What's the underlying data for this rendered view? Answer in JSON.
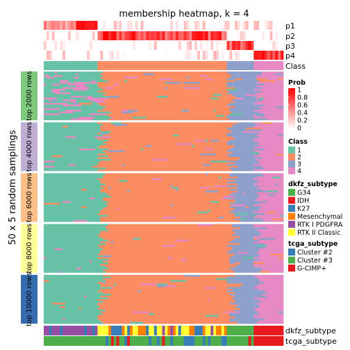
{
  "chart_data": {
    "type": "heatmap",
    "title": "membership heatmap, k = 4",
    "ylabel": "50 x 5 random samplings",
    "top_annotations": [
      "p1",
      "p2",
      "p3",
      "p4",
      "Class"
    ],
    "bottom_annotations": [
      "dkfz_subtype",
      "tcga_subtype"
    ],
    "class_colors": {
      "1": "#66C2A5",
      "2": "#FC8D62",
      "3": "#8DA0CB",
      "4": "#E78AC3"
    },
    "class_column_runs": [
      {
        "class": "1",
        "columns": 20
      },
      {
        "class": "2",
        "columns": 48
      },
      {
        "class": "3",
        "columns": 10
      },
      {
        "class": "4",
        "columns": 11
      }
    ],
    "row_groups": [
      {
        "label": "top 2000 rows",
        "color": "#7FC97F"
      },
      {
        "label": "top 4000 rows",
        "color": "#BEAED4"
      },
      {
        "label": "top 6000 rows",
        "color": "#FDC086"
      },
      {
        "label": "top 8000 rows",
        "color": "#FFFF99"
      },
      {
        "label": "top 10000 rows",
        "color": "#386CB0"
      }
    ],
    "prob_legend": {
      "title": "Prob",
      "ticks": [
        "1",
        "0.8",
        "0.6",
        "0.4",
        "0.2",
        "0"
      ],
      "low_color": "#FFFFFF",
      "high_color": "#FF0000"
    },
    "class_legend": {
      "title": "Class",
      "labels": [
        "1",
        "2",
        "3",
        "4"
      ]
    },
    "dkfz_legend": {
      "title": "dkfz_subtype",
      "items": [
        {
          "label": "G34",
          "color": "#4DAF4A"
        },
        {
          "label": "IDH",
          "color": "#E41A1C"
        },
        {
          "label": "K27",
          "color": "#377EB8"
        },
        {
          "label": "Mesenchymal",
          "color": "#FF7F00"
        },
        {
          "label": "RTK I PDGFRA",
          "color": "#984EA3"
        },
        {
          "label": "RTK II Classic",
          "color": "#FFFF33"
        }
      ]
    },
    "tcga_legend": {
      "title": "tcga_subtype",
      "items": [
        {
          "label": "Cluster #2",
          "color": "#377EB8"
        },
        {
          "label": "Cluster #3",
          "color": "#4DAF4A"
        },
        {
          "label": "G-CIMP+",
          "color": "#E41A1C"
        }
      ]
    }
  }
}
